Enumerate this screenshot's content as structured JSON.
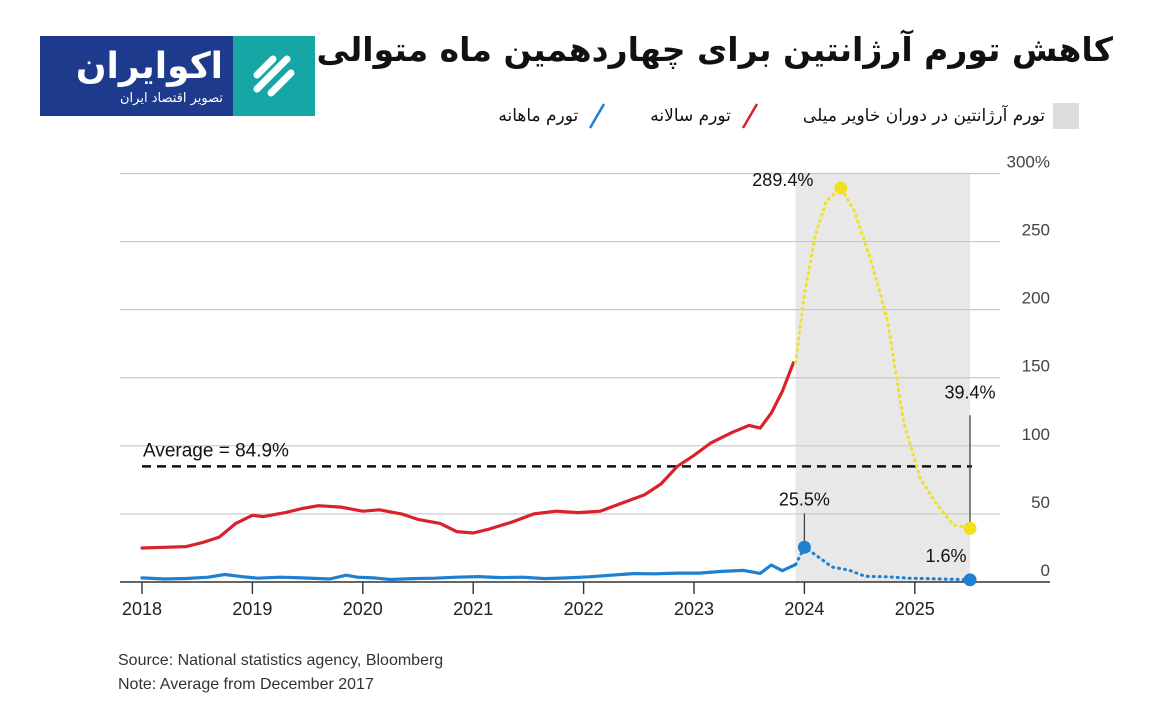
{
  "brand": {
    "name": "اکوایران",
    "tagline": "تصویر اقتصاد ایران",
    "logo_bg": "#1e3a8c",
    "mark_bg": "#17a6a6"
  },
  "title": "کاهش تورم آرژانتین برای چهاردهمین ماه متوالی",
  "legend": [
    {
      "label": "تورم ماهانه",
      "color": "#1f7fd0",
      "icon": "slash-line-icon"
    },
    {
      "label": "تورم سالانه",
      "color": "#d8232a",
      "icon": "slash-line-icon"
    },
    {
      "label": "تورم آرژانتین در دوران خاویر میلی",
      "color": "#dcdcdc",
      "icon": "shaded-box-icon"
    }
  ],
  "chart_data": {
    "type": "line",
    "x_ticks": [
      "2018",
      "2019",
      "2020",
      "2021",
      "2022",
      "2023",
      "2024",
      "2025"
    ],
    "y_ticks": [
      "0",
      "50",
      "100",
      "150",
      "200",
      "250",
      "300%"
    ],
    "xlim": [
      2018.0,
      2026.0
    ],
    "ylim": [
      0,
      300
    ],
    "grid": true,
    "shaded_period": {
      "start": 2023.92,
      "end": 2025.5
    },
    "average": {
      "label": "Average = 84.9%",
      "value": 84.9
    },
    "series": [
      {
        "color": "#d8232a",
        "style": "solid",
        "points": [
          [
            2018.0,
            25
          ],
          [
            2018.2,
            25.5
          ],
          [
            2018.4,
            26
          ],
          [
            2018.55,
            29
          ],
          [
            2018.7,
            33
          ],
          [
            2018.85,
            43
          ],
          [
            2019.0,
            49
          ],
          [
            2019.1,
            48
          ],
          [
            2019.3,
            51
          ],
          [
            2019.45,
            54
          ],
          [
            2019.6,
            56
          ],
          [
            2019.8,
            55
          ],
          [
            2020.0,
            52
          ],
          [
            2020.15,
            53
          ],
          [
            2020.35,
            50
          ],
          [
            2020.5,
            46
          ],
          [
            2020.7,
            43
          ],
          [
            2020.85,
            37
          ],
          [
            2021.0,
            36
          ],
          [
            2021.15,
            39
          ],
          [
            2021.35,
            44
          ],
          [
            2021.55,
            50
          ],
          [
            2021.75,
            52
          ],
          [
            2021.95,
            51
          ],
          [
            2022.15,
            52
          ],
          [
            2022.35,
            58
          ],
          [
            2022.55,
            64
          ],
          [
            2022.7,
            72
          ],
          [
            2022.85,
            85
          ],
          [
            2023.0,
            93
          ],
          [
            2023.15,
            102
          ],
          [
            2023.35,
            110
          ],
          [
            2023.5,
            115
          ],
          [
            2023.6,
            113
          ],
          [
            2023.7,
            124
          ],
          [
            2023.8,
            140
          ],
          [
            2023.9,
            161
          ]
        ]
      },
      {
        "color": "#f0e020",
        "style": "dotted",
        "points": [
          [
            2023.92,
            161
          ],
          [
            2024.0,
            211
          ],
          [
            2024.1,
            255
          ],
          [
            2024.2,
            280
          ],
          [
            2024.33,
            289.4
          ],
          [
            2024.45,
            273
          ],
          [
            2024.6,
            237
          ],
          [
            2024.75,
            193
          ],
          [
            2024.9,
            117
          ],
          [
            2025.05,
            76
          ],
          [
            2025.2,
            57
          ],
          [
            2025.35,
            42
          ],
          [
            2025.5,
            39.4
          ]
        ]
      },
      {
        "color": "#1f7fd0",
        "style": "solid",
        "points": [
          [
            2018.0,
            3
          ],
          [
            2018.2,
            2.2
          ],
          [
            2018.4,
            2.6
          ],
          [
            2018.6,
            3.5
          ],
          [
            2018.75,
            5.5
          ],
          [
            2018.9,
            4
          ],
          [
            2019.05,
            2.8
          ],
          [
            2019.25,
            3.5
          ],
          [
            2019.45,
            3
          ],
          [
            2019.7,
            2.2
          ],
          [
            2019.85,
            5
          ],
          [
            2019.95,
            3.5
          ],
          [
            2020.1,
            3
          ],
          [
            2020.25,
            1.8
          ],
          [
            2020.45,
            2.5
          ],
          [
            2020.65,
            2.8
          ],
          [
            2020.85,
            3.5
          ],
          [
            2021.05,
            4
          ],
          [
            2021.25,
            3.2
          ],
          [
            2021.45,
            3.5
          ],
          [
            2021.65,
            2.5
          ],
          [
            2021.85,
            3
          ],
          [
            2022.05,
            3.8
          ],
          [
            2022.25,
            5
          ],
          [
            2022.45,
            6.2
          ],
          [
            2022.65,
            6
          ],
          [
            2022.85,
            6.5
          ],
          [
            2023.05,
            6.5
          ],
          [
            2023.25,
            7.8
          ],
          [
            2023.45,
            8.5
          ],
          [
            2023.6,
            6.3
          ],
          [
            2023.7,
            12.5
          ],
          [
            2023.8,
            8.3
          ],
          [
            2023.92,
            12.8
          ]
        ]
      },
      {
        "color": "#1f7fd0",
        "style": "dotted",
        "points": [
          [
            2023.92,
            12.8
          ],
          [
            2024.0,
            25.5
          ],
          [
            2024.1,
            20
          ],
          [
            2024.25,
            11
          ],
          [
            2024.4,
            8.8
          ],
          [
            2024.55,
            4.2
          ],
          [
            2024.75,
            3.8
          ],
          [
            2024.95,
            2.8
          ],
          [
            2025.15,
            2.4
          ],
          [
            2025.35,
            2
          ],
          [
            2025.5,
            1.6
          ]
        ]
      }
    ],
    "annotations": [
      {
        "text": "289.4%",
        "x": 2024.33,
        "y": 289.4,
        "marker_color": "#f0e020"
      },
      {
        "text": "39.4%",
        "x": 2025.5,
        "y": 39.4,
        "marker_color": "#f0e020"
      },
      {
        "text": "25.5%",
        "x": 2024.0,
        "y": 25.5,
        "marker_color": "#1f7fd0"
      },
      {
        "text": "1.6%",
        "x": 2025.5,
        "y": 1.6,
        "marker_color": "#1f7fd0"
      }
    ]
  },
  "source": "Source: National statistics agency, Bloomberg",
  "note": "Note: Average from December 2017"
}
